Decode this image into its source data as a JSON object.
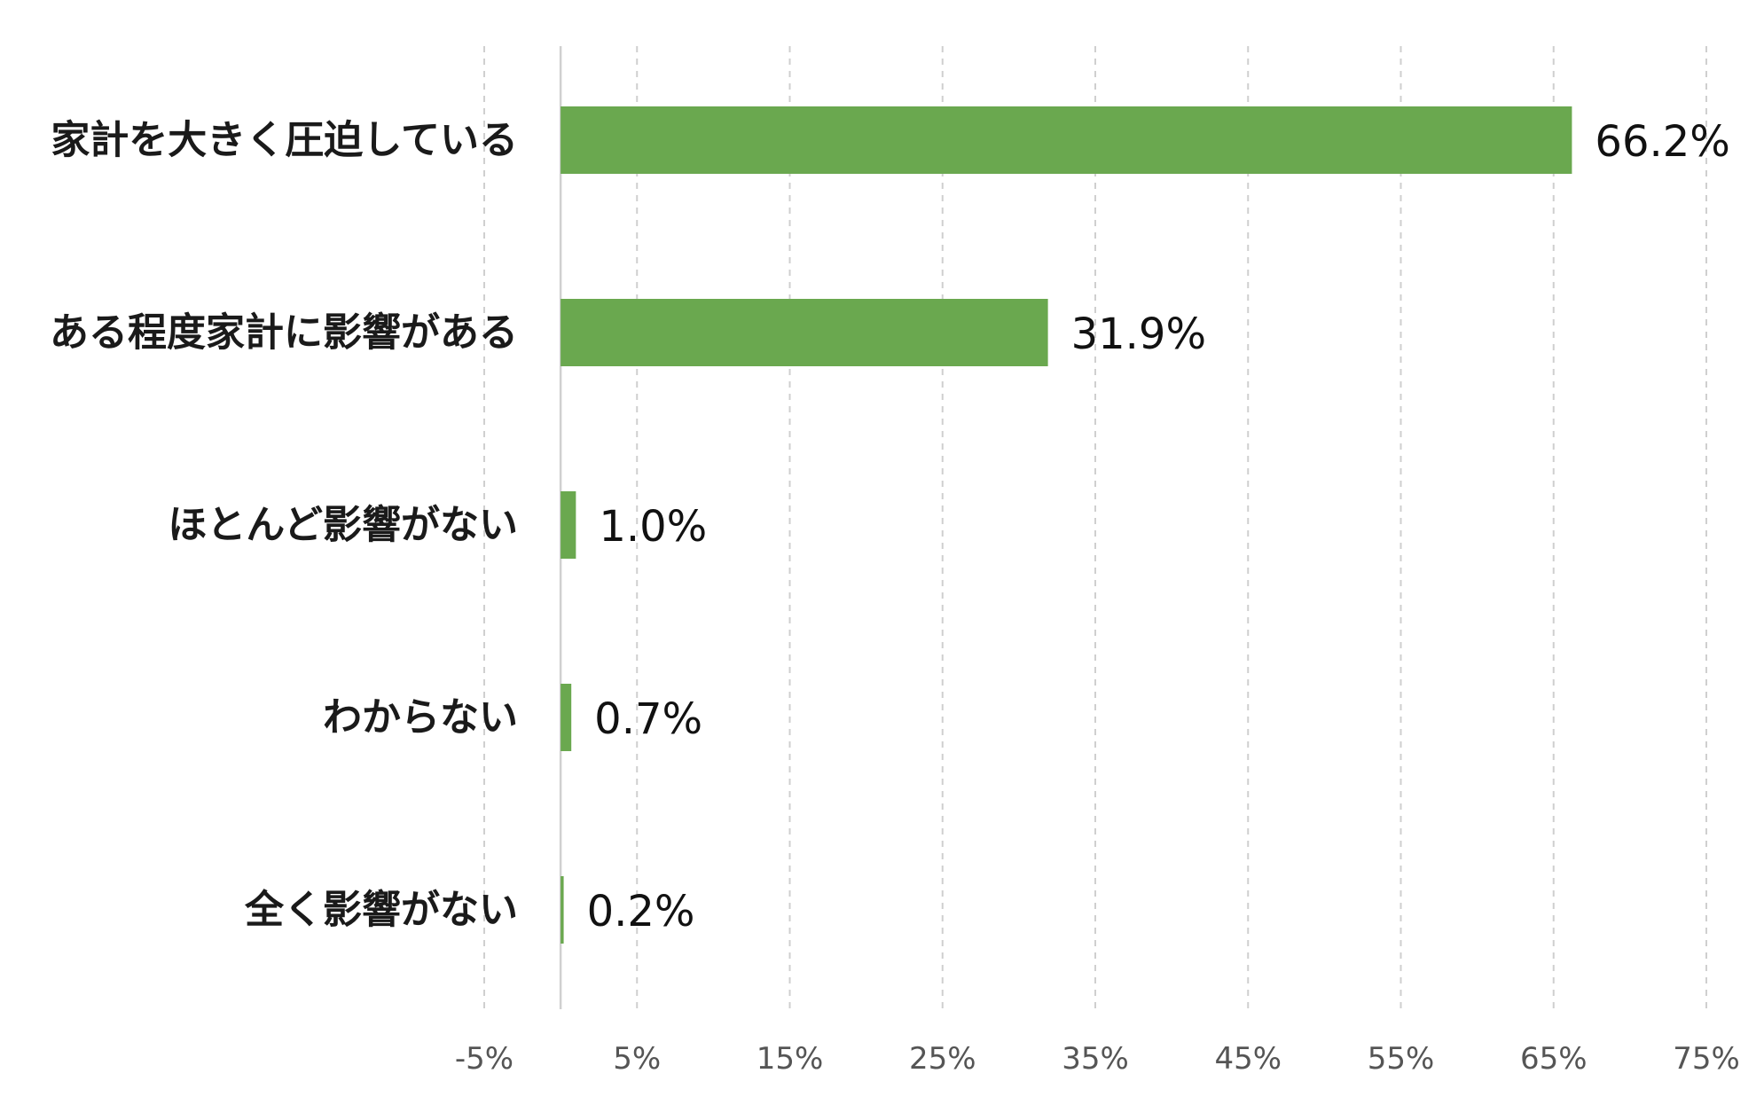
{
  "chart_data": {
    "type": "bar",
    "orientation": "horizontal",
    "categories": [
      "家計を大きく圧迫している",
      "ある程度家計に影響がある",
      "ほとんど影響がない",
      "わからない",
      "全く影響がない"
    ],
    "values": [
      66.2,
      31.9,
      1.0,
      0.7,
      0.2
    ],
    "data_labels": [
      "66.2%",
      "31.9%",
      "1.0%",
      "0.7%",
      "0.2%"
    ],
    "x_ticks": [
      -5,
      5,
      15,
      25,
      35,
      45,
      55,
      65,
      75
    ],
    "x_tick_labels": [
      "-5%",
      "5%",
      "15%",
      "25%",
      "35%",
      "45%",
      "55%",
      "65%",
      "75%"
    ],
    "xlim": [
      -5,
      75
    ],
    "grid": true,
    "legend": "none",
    "bar_color": "#6aa84f"
  }
}
